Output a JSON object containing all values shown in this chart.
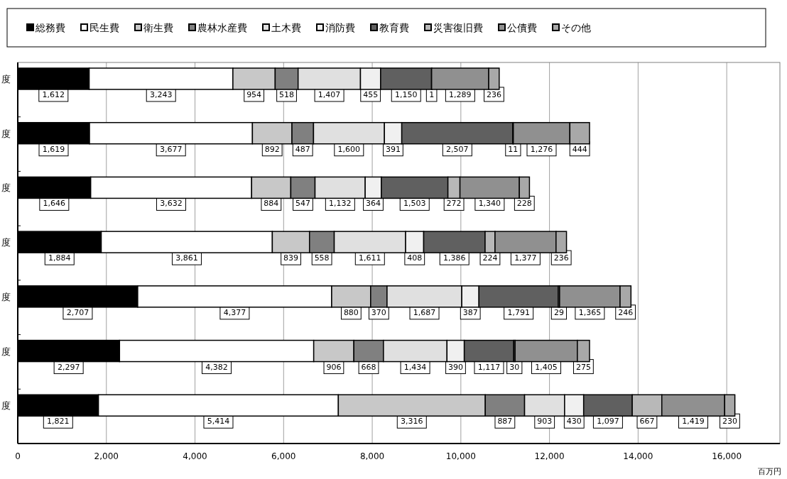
{
  "chart_data": {
    "type": "bar",
    "orientation": "horizontal",
    "stacked": true,
    "grid": "x",
    "legend": "top",
    "xlabel": "百万円",
    "categories": [
      "度",
      "度",
      "度",
      "度",
      "度",
      "度",
      "度"
    ],
    "xlim": [
      0,
      17200
    ],
    "xticks": [
      {
        "value": 0,
        "label": "0"
      },
      {
        "value": 2000,
        "label": "2,000"
      },
      {
        "value": 4000,
        "label": "4,000"
      },
      {
        "value": 6000,
        "label": "6,000"
      },
      {
        "value": 8000,
        "label": "8,000"
      },
      {
        "value": 10000,
        "label": "10,000"
      },
      {
        "value": 12000,
        "label": "12,000"
      },
      {
        "value": 14000,
        "label": "14,000"
      },
      {
        "value": 16000,
        "label": "16,000"
      }
    ],
    "series": [
      {
        "name": "総務費",
        "color": "#000000",
        "values": [
          1612,
          1619,
          1646,
          1884,
          2707,
          2297,
          1821
        ],
        "value_labels": [
          "1,612",
          "1,619",
          "1,646",
          "1,884",
          "2,707",
          "2,297",
          "1,821"
        ]
      },
      {
        "name": "民生費",
        "color": "#ffffff",
        "values": [
          3243,
          3677,
          3632,
          3861,
          4377,
          4382,
          5414
        ],
        "value_labels": [
          "3,243",
          "3,677",
          "3,632",
          "3,861",
          "4,377",
          "4,382",
          "5,414"
        ]
      },
      {
        "name": "衛生費",
        "color": "#c8c8c8",
        "values": [
          954,
          892,
          884,
          839,
          880,
          906,
          3316
        ],
        "value_labels": [
          "954",
          "892",
          "884",
          "839",
          "880",
          "906",
          "3,316"
        ]
      },
      {
        "name": "農林水産費",
        "color": "#808080",
        "values": [
          518,
          487,
          547,
          558,
          370,
          668,
          887
        ],
        "value_labels": [
          "518",
          "487",
          "547",
          "558",
          "370",
          "668",
          "887"
        ]
      },
      {
        "name": "土木費",
        "color": "#e0e0e0",
        "values": [
          1407,
          1600,
          1132,
          1611,
          1687,
          1434,
          903
        ],
        "value_labels": [
          "1,407",
          "1,600",
          "1,132",
          "1,611",
          "1,687",
          "1,434",
          "903"
        ]
      },
      {
        "name": "消防費",
        "color": "#f0f0f0",
        "values": [
          455,
          391,
          364,
          408,
          387,
          390,
          430
        ],
        "value_labels": [
          "455",
          "391",
          "364",
          "408",
          "387",
          "390",
          "430"
        ]
      },
      {
        "name": "教育費",
        "color": "#606060",
        "values": [
          1150,
          2507,
          1503,
          1386,
          1791,
          1117,
          1097
        ],
        "value_labels": [
          "1,150",
          "2,507",
          "1,503",
          "1,386",
          "1,791",
          "1,117",
          "1,097"
        ]
      },
      {
        "name": "災害復旧費",
        "color": "#b8b8b8",
        "values": [
          1,
          11,
          272,
          224,
          29,
          30,
          667
        ],
        "value_labels": [
          "1",
          "11",
          "272",
          "224",
          "29",
          "30",
          "667"
        ]
      },
      {
        "name": "公債費",
        "color": "#909090",
        "values": [
          1289,
          1276,
          1340,
          1377,
          1365,
          1405,
          1419
        ],
        "value_labels": [
          "1,289",
          "1,276",
          "1,340",
          "1,377",
          "1,365",
          "1,405",
          "1,419"
        ]
      },
      {
        "name": "その他",
        "color": "#a8a8a8",
        "values": [
          236,
          444,
          228,
          236,
          246,
          275,
          230
        ],
        "value_labels": [
          "236",
          "444",
          "228",
          "236",
          "246",
          "275",
          "230"
        ]
      }
    ]
  }
}
